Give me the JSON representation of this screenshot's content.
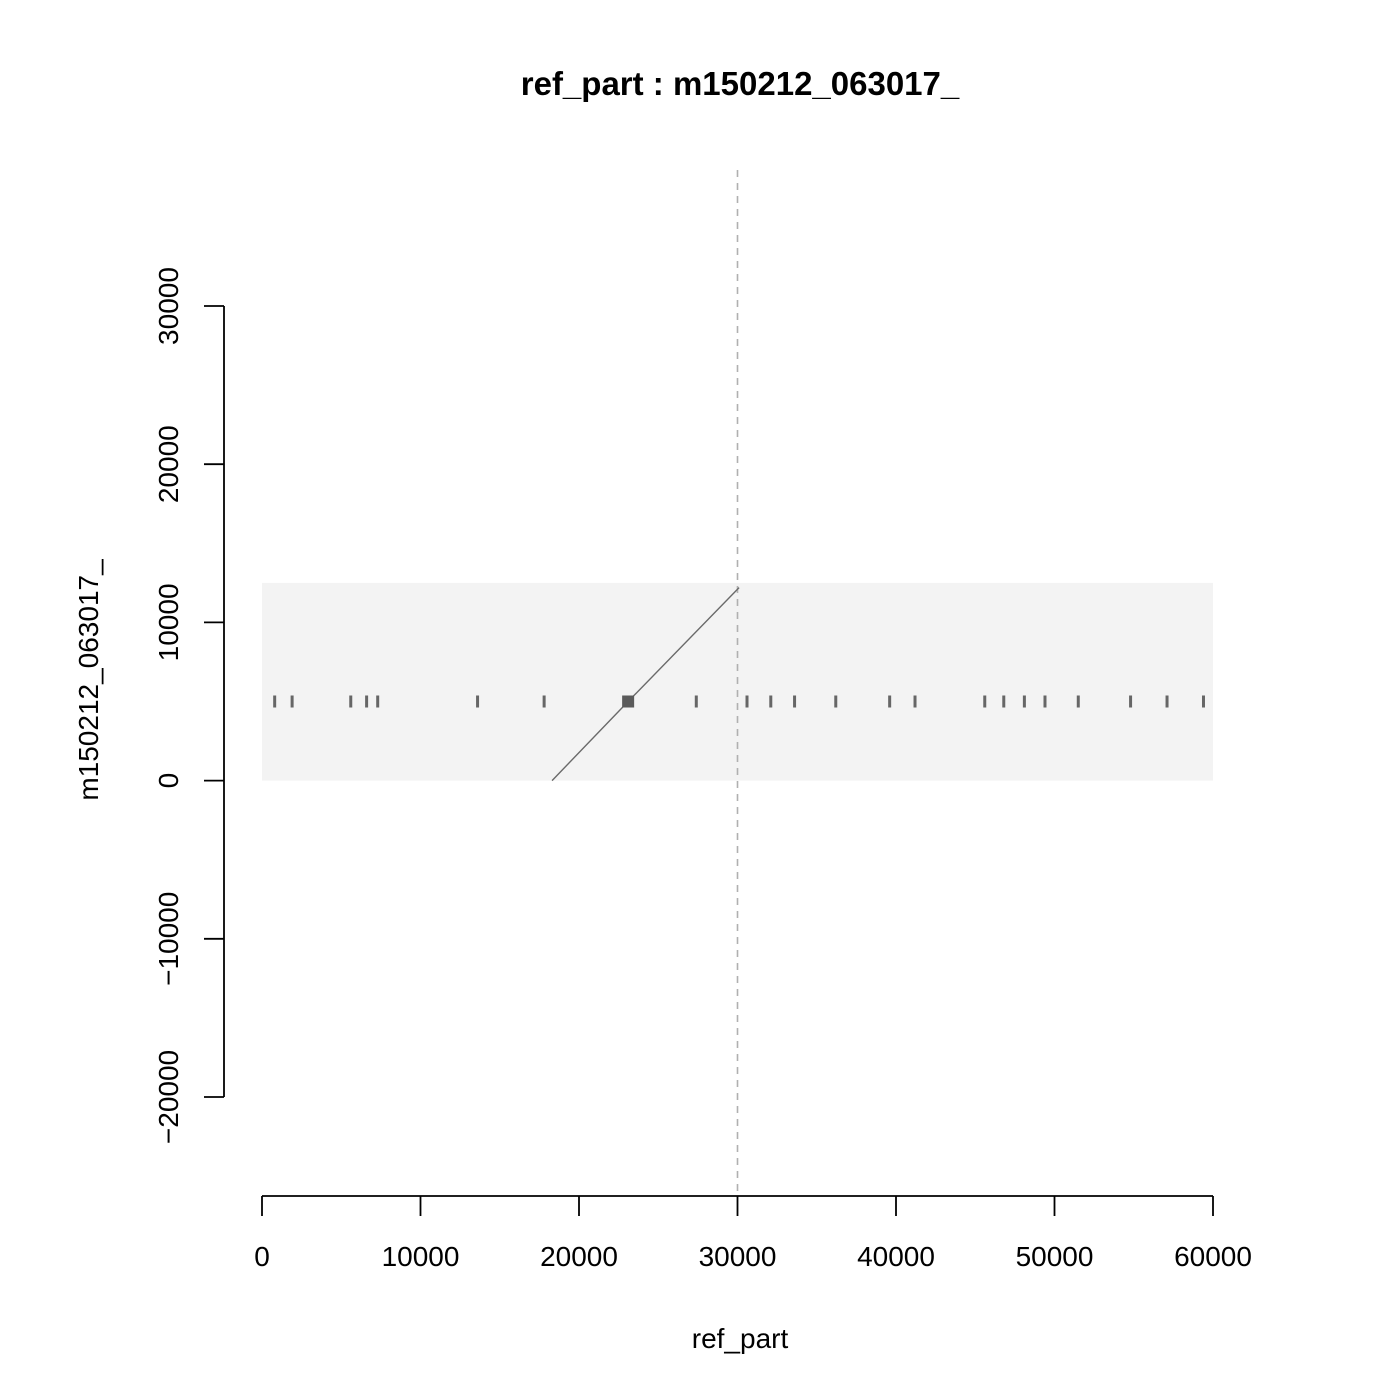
{
  "chart_data": {
    "type": "scatter",
    "title": "ref_part : m150212_063017_",
    "xlabel": "ref_part",
    "ylabel": "m150212_063017_",
    "xlim": [
      0,
      60000
    ],
    "ylim": [
      -20000,
      30000
    ],
    "x_ticks": [
      0,
      10000,
      20000,
      30000,
      40000,
      50000,
      60000
    ],
    "y_ticks": [
      -20000,
      -10000,
      0,
      10000,
      20000,
      30000
    ],
    "x_tick_labels": [
      "0",
      "10000",
      "20000",
      "30000",
      "40000",
      "50000",
      "60000"
    ],
    "y_tick_labels": [
      "−20000",
      "−10000",
      "0",
      "10000",
      "20000",
      "30000"
    ],
    "grid": false,
    "reference_line": {
      "x": 30000,
      "style": "dashed",
      "color": "#b0b0b0"
    },
    "background_hits": {
      "x_range": [
        0,
        60000
      ],
      "y_range": [
        0,
        12500
      ],
      "color": "#f0f0f0"
    },
    "series": [
      {
        "x": [
          18300,
          23100,
          30100
        ],
        "y": [
          0,
          5000,
          12200
        ]
      }
    ],
    "dense_spot": {
      "x": 23100,
      "y": 5000
    },
    "repeat_band_y": 5000,
    "repeat_marks_x": [
      800,
      1900,
      5600,
      6600,
      7300,
      13600,
      17800,
      27400,
      30600,
      32100,
      33600,
      36200,
      39600,
      41200,
      45600,
      46800,
      48100,
      49400,
      51500,
      54800,
      57100,
      59400
    ]
  }
}
